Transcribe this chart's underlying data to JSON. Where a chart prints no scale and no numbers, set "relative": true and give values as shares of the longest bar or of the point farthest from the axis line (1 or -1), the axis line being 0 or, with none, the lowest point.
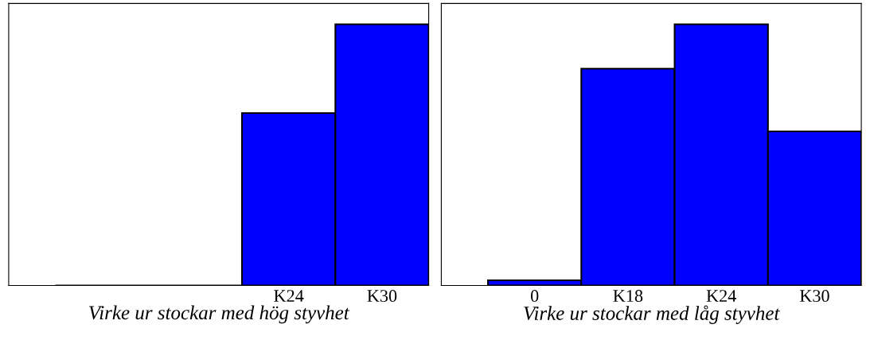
{
  "chart_data": [
    {
      "type": "bar",
      "relative": true,
      "categories": [
        null,
        null,
        "K24",
        "K30"
      ],
      "values": [
        0,
        0,
        0.66,
        1
      ],
      "color": "#0000ff",
      "xlabel": "Virke ur stockar med hög styvhet",
      "tick_labels": "x"
    },
    {
      "type": "bar",
      "relative": true,
      "categories": [
        "0",
        "K18",
        "K24",
        "K30"
      ],
      "values": [
        0.02,
        0.83,
        1,
        0.59
      ],
      "color": "#0000ff",
      "xlabel": "Virke ur stockar med låg styvhet",
      "tick_labels": "x"
    }
  ]
}
